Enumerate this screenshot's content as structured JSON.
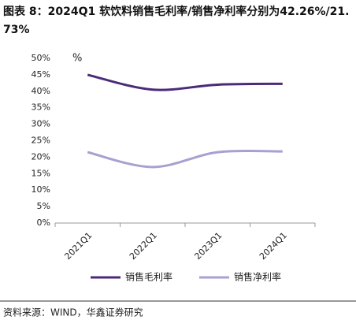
{
  "chart_data": {
    "type": "line",
    "title": "图表 8：2024Q1 软饮料销售毛利率/销售净利率分别为42.26%/21.73%",
    "y_unit": "%",
    "categories": [
      "2021Q1",
      "2022Q1",
      "2023Q1",
      "2024Q1"
    ],
    "series": [
      {
        "name": "销售毛利率",
        "color": "#4b2a7a",
        "values": [
          45,
          40.5,
          42,
          42.26
        ]
      },
      {
        "name": "销售净利率",
        "color": "#a9a0d0",
        "values": [
          21.5,
          17,
          21.5,
          21.73
        ]
      }
    ],
    "ylim": [
      0,
      50
    ],
    "yticks": [
      {
        "value": 0,
        "label": "0%"
      },
      {
        "value": 5,
        "label": "5%"
      },
      {
        "value": 10,
        "label": "10%"
      },
      {
        "value": 15,
        "label": "15%"
      },
      {
        "value": 20,
        "label": "20%"
      },
      {
        "value": 25,
        "label": "25%"
      },
      {
        "value": 30,
        "label": "30%"
      },
      {
        "value": 35,
        "label": "35%"
      },
      {
        "value": 40,
        "label": "40%"
      },
      {
        "value": 45,
        "label": "45%"
      },
      {
        "value": 50,
        "label": "50%"
      }
    ],
    "legend": "bottom",
    "source": "资料来源：WIND，华鑫证券研究"
  }
}
